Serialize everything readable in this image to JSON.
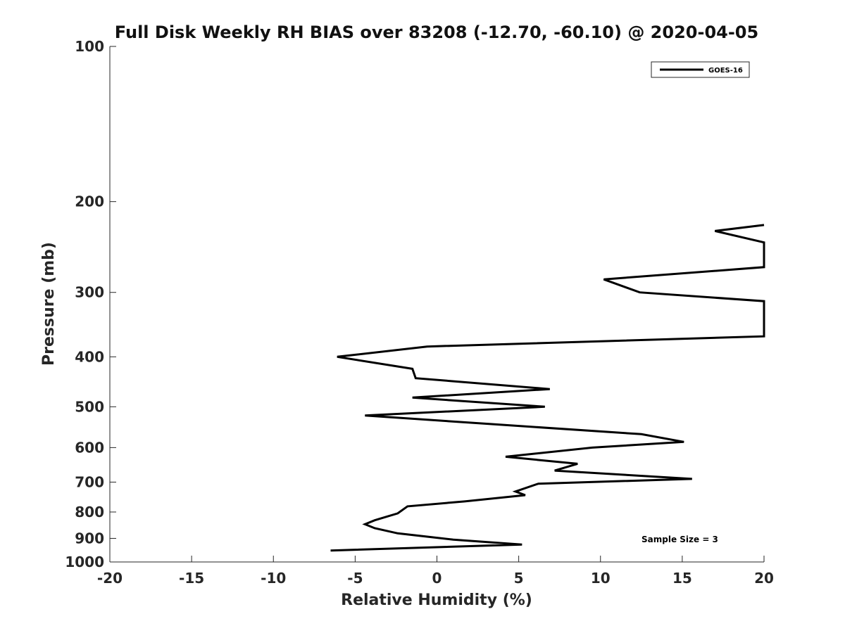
{
  "chart_data": {
    "type": "line",
    "title": "Full Disk Weekly RH BIAS over 83208 (-12.70, -60.10) @ 2020-04-05",
    "xlabel": "Relative Humidity (%)",
    "ylabel": "Pressure (mb)",
    "xlim": [
      -20,
      20
    ],
    "ylim": [
      1000,
      100
    ],
    "y_scale": "log",
    "y_direction": "reversed",
    "x_ticks": [
      "-20",
      "-15",
      "-10",
      "-5",
      "0",
      "5",
      "10",
      "15",
      "20"
    ],
    "y_ticks": [
      "100",
      "200",
      "300",
      "400",
      "500",
      "600",
      "700",
      "800",
      "900",
      "1000"
    ],
    "grid": false,
    "legend_position": "top-right",
    "series": [
      {
        "name": "GOES-16",
        "color": "#000000",
        "points": [
          {
            "x": -6.5,
            "y": 950
          },
          {
            "x": 5.2,
            "y": 925
          },
          {
            "x": 1.0,
            "y": 905
          },
          {
            "x": -2.4,
            "y": 880
          },
          {
            "x": -3.8,
            "y": 860
          },
          {
            "x": -4.4,
            "y": 845
          },
          {
            "x": -3.8,
            "y": 830
          },
          {
            "x": -2.4,
            "y": 805
          },
          {
            "x": -1.8,
            "y": 780
          },
          {
            "x": 1.7,
            "y": 763
          },
          {
            "x": 5.4,
            "y": 742
          },
          {
            "x": 4.8,
            "y": 730
          },
          {
            "x": 6.2,
            "y": 705
          },
          {
            "x": 15.6,
            "y": 690
          },
          {
            "x": 7.2,
            "y": 665
          },
          {
            "x": 8.6,
            "y": 645
          },
          {
            "x": 4.2,
            "y": 625
          },
          {
            "x": 9.5,
            "y": 600
          },
          {
            "x": 15.1,
            "y": 585
          },
          {
            "x": 12.5,
            "y": 565
          },
          {
            "x": 3.2,
            "y": 540
          },
          {
            "x": -4.4,
            "y": 520
          },
          {
            "x": 6.6,
            "y": 500
          },
          {
            "x": -1.5,
            "y": 480
          },
          {
            "x": 6.9,
            "y": 462
          },
          {
            "x": -1.3,
            "y": 440
          },
          {
            "x": -1.5,
            "y": 422
          },
          {
            "x": -6.1,
            "y": 400
          },
          {
            "x": -0.6,
            "y": 382
          },
          {
            "x": 20,
            "y": 365
          },
          {
            "x": 20,
            "y": 312
          },
          {
            "x": 12.4,
            "y": 300
          },
          {
            "x": 10.2,
            "y": 283
          },
          {
            "x": 20,
            "y": 268
          },
          {
            "x": 20,
            "y": 240
          },
          {
            "x": 17.0,
            "y": 228
          },
          {
            "x": 20,
            "y": 222
          }
        ]
      }
    ],
    "annotations": [
      "Sample Size = 3"
    ]
  }
}
